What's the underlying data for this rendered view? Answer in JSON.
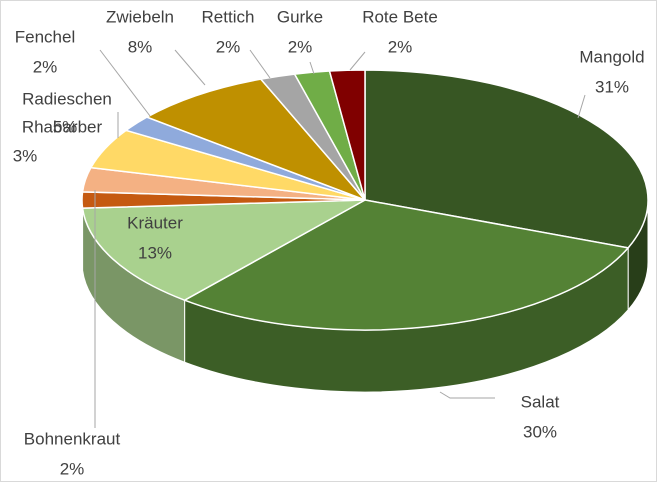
{
  "chart_data": {
    "type": "pie",
    "categories": [
      "Mangold",
      "Salat",
      "Kräuter",
      "Bohnenkraut",
      "Rhabarber",
      "Radieschen",
      "Fenchel",
      "Zwiebeln",
      "Rettich",
      "Gurke",
      "Rote Bete"
    ],
    "values": [
      31,
      30,
      13,
      2,
      3,
      5,
      2,
      8,
      2,
      2,
      2
    ],
    "value_labels": [
      "31%",
      "30%",
      "13%",
      "2%",
      "3%",
      "5%",
      "2%",
      "8%",
      "2%",
      "2%",
      "2%"
    ],
    "colors": [
      "#375623",
      "#548235",
      "#a9d18e",
      "#c55a11",
      "#f4b183",
      "#ffd966",
      "#8faadc",
      "#bf9000",
      "#a5a5a5",
      "#70ad47",
      "#800000"
    ]
  }
}
